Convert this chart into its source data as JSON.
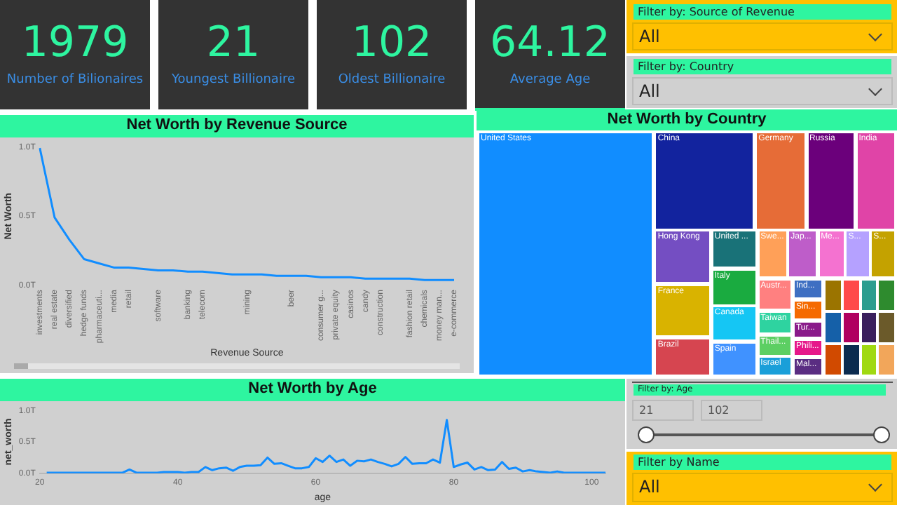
{
  "chart_data": [
    {
      "type": "other",
      "annotations": [
        "1979",
        "Number of Bilionaires",
        "21",
        "Youngest Billionaire",
        "102",
        "Oldest Billionaire",
        "64.12",
        "Average Age"
      ]
    },
    {
      "type": "other",
      "annotations": [
        "Filter by: Source of Revenue",
        "All",
        "Filter by: Country",
        "All",
        "Filter by: Age",
        "21",
        "102",
        "Filter by Name",
        "All"
      ]
    },
    {
      "type": "line",
      "title": "Net Worth by Revenue Source",
      "xlabel": "Revenue Source",
      "ylabel": "Net Worth",
      "categories": [
        "investments",
        "real estate",
        "diversified",
        "hedge funds",
        "pharmaceuti...",
        "media",
        "retail",
        null,
        "software",
        null,
        "banking",
        "telecom",
        null,
        null,
        "mining",
        null,
        null,
        "beer",
        null,
        "consumer g...",
        "private equity",
        "casinos",
        "candy",
        "construction",
        null,
        "fashion retail",
        "chemicals",
        "money man...",
        "e-commerce"
      ],
      "series": [
        {
          "color": "#118dff",
          "values": [
            0.99,
            0.49,
            0.33,
            0.19,
            0.16,
            0.13,
            0.13,
            0.12,
            0.11,
            0.11,
            0.1,
            0.1,
            0.09,
            0.08,
            0.08,
            0.08,
            0.07,
            0.07,
            0.07,
            0.06,
            0.06,
            0.06,
            0.05,
            0.05,
            0.05,
            0.05,
            0.04,
            0.04,
            0.04
          ]
        }
      ],
      "ylim": [
        0,
        1.0
      ],
      "yticks": [
        {
          "value": 0,
          "label": "0.0T"
        },
        {
          "value": 0.5,
          "label": "0.5T"
        },
        {
          "value": 1.0,
          "label": "1.0T"
        }
      ]
    },
    {
      "type": "other",
      "title": "Net Worth by Country",
      "categories": [
        "United States",
        "China",
        "Germany",
        "Russia",
        "India",
        "Hong Kong",
        "France",
        "Brazil",
        "United ...",
        "Italy",
        "Canada",
        "Spain",
        "Swe...",
        "Jap...",
        "Me...",
        "S...",
        "S...",
        "Austr...",
        "Taiwan",
        "Thail...",
        "Israel",
        "Ind...",
        "Sin...",
        "Tur...",
        "Phili...",
        "Mal...",
        null,
        null,
        null,
        null,
        null,
        null,
        null,
        null,
        null,
        null,
        null,
        null
      ],
      "colors": [
        "#118dff",
        "#12239e",
        "#e66c37",
        "#6b007b",
        "#e044a7",
        "#744ec2",
        "#d9b300",
        "#d64550",
        "#197278",
        "#1aab40",
        "#15c6f4",
        "#4092ff",
        "#ffa058",
        "#be5dc9",
        "#f472d0",
        "#b5a1ff",
        "#c4a200",
        "#ff8080",
        "#2ed3a0",
        "#5ccf63",
        "#1a9fd9",
        "#3e6fc2",
        "#f56a00",
        "#8a1a8a",
        "#e6178a",
        "#5a2d82",
        "#9b7400",
        "#ff4a4a",
        "#2a9d8f",
        "#2e8b2e",
        "#1560a8",
        "#b0005f",
        "#3a1f5d",
        "#6b5a2a",
        "#d14a00",
        "#0b2b4f",
        "#a0d911",
        "#f2a65a"
      ]
    },
    {
      "type": "line",
      "title": "Net Worth by Age",
      "xlabel": "age",
      "ylabel": "net_worth",
      "x": [
        21,
        22,
        23,
        24,
        25,
        26,
        27,
        28,
        29,
        30,
        31,
        32,
        33,
        34,
        35,
        36,
        37,
        38,
        39,
        40,
        41,
        42,
        43,
        44,
        45,
        46,
        47,
        48,
        49,
        50,
        51,
        52,
        53,
        54,
        55,
        56,
        57,
        58,
        59,
        60,
        61,
        62,
        63,
        64,
        65,
        66,
        67,
        68,
        69,
        70,
        71,
        72,
        73,
        74,
        75,
        76,
        77,
        78,
        79,
        80,
        81,
        82,
        83,
        84,
        85,
        86,
        87,
        88,
        89,
        90,
        91,
        92,
        93,
        94,
        95,
        96,
        97,
        98,
        99,
        100,
        101,
        102
      ],
      "series": [
        {
          "color": "#118dff",
          "values": [
            0.01,
            0.01,
            0.01,
            0.01,
            0.01,
            0.01,
            0.01,
            0.01,
            0.01,
            0.01,
            0.01,
            0.01,
            0.06,
            0.01,
            0.01,
            0.01,
            0.01,
            0.02,
            0.02,
            0.02,
            0.01,
            0.02,
            0.02,
            0.1,
            0.05,
            0.08,
            0.09,
            0.04,
            0.1,
            0.12,
            0.12,
            0.13,
            0.25,
            0.15,
            0.16,
            0.12,
            0.08,
            0.08,
            0.1,
            0.24,
            0.18,
            0.28,
            0.18,
            0.22,
            0.12,
            0.2,
            0.19,
            0.22,
            0.18,
            0.15,
            0.11,
            0.15,
            0.26,
            0.15,
            0.16,
            0.16,
            0.22,
            0.17,
            0.85,
            0.1,
            0.14,
            0.17,
            0.06,
            0.1,
            0.05,
            0.06,
            0.18,
            0.07,
            0.09,
            0.03,
            0.05,
            0.03,
            0.02,
            0.01,
            0.03,
            0.01,
            0.01,
            0.01,
            0.01,
            0.01,
            0.01,
            0.01
          ]
        }
      ],
      "xlim": [
        20,
        102
      ],
      "xticks": [
        20,
        40,
        60,
        80,
        100
      ],
      "ylim": [
        0,
        1.0
      ],
      "yticks": [
        {
          "value": 0,
          "label": "0.0T"
        },
        {
          "value": 0.5,
          "label": "0.5T"
        },
        {
          "value": 1.0,
          "label": "1.0T"
        }
      ]
    }
  ]
}
